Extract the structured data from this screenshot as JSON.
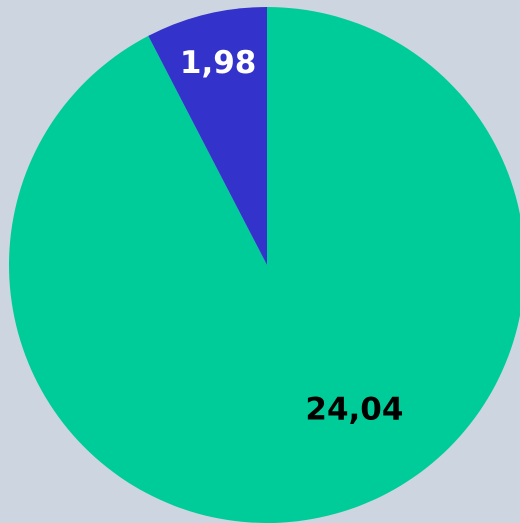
{
  "chart_data": {
    "type": "pie",
    "values": [
      24.04,
      1.98
    ],
    "value_labels": [
      "24,04",
      "1,98"
    ],
    "colors": [
      "#00cc99",
      "#3333cc"
    ],
    "label_colors": [
      "#000000",
      "#ffffff"
    ]
  }
}
